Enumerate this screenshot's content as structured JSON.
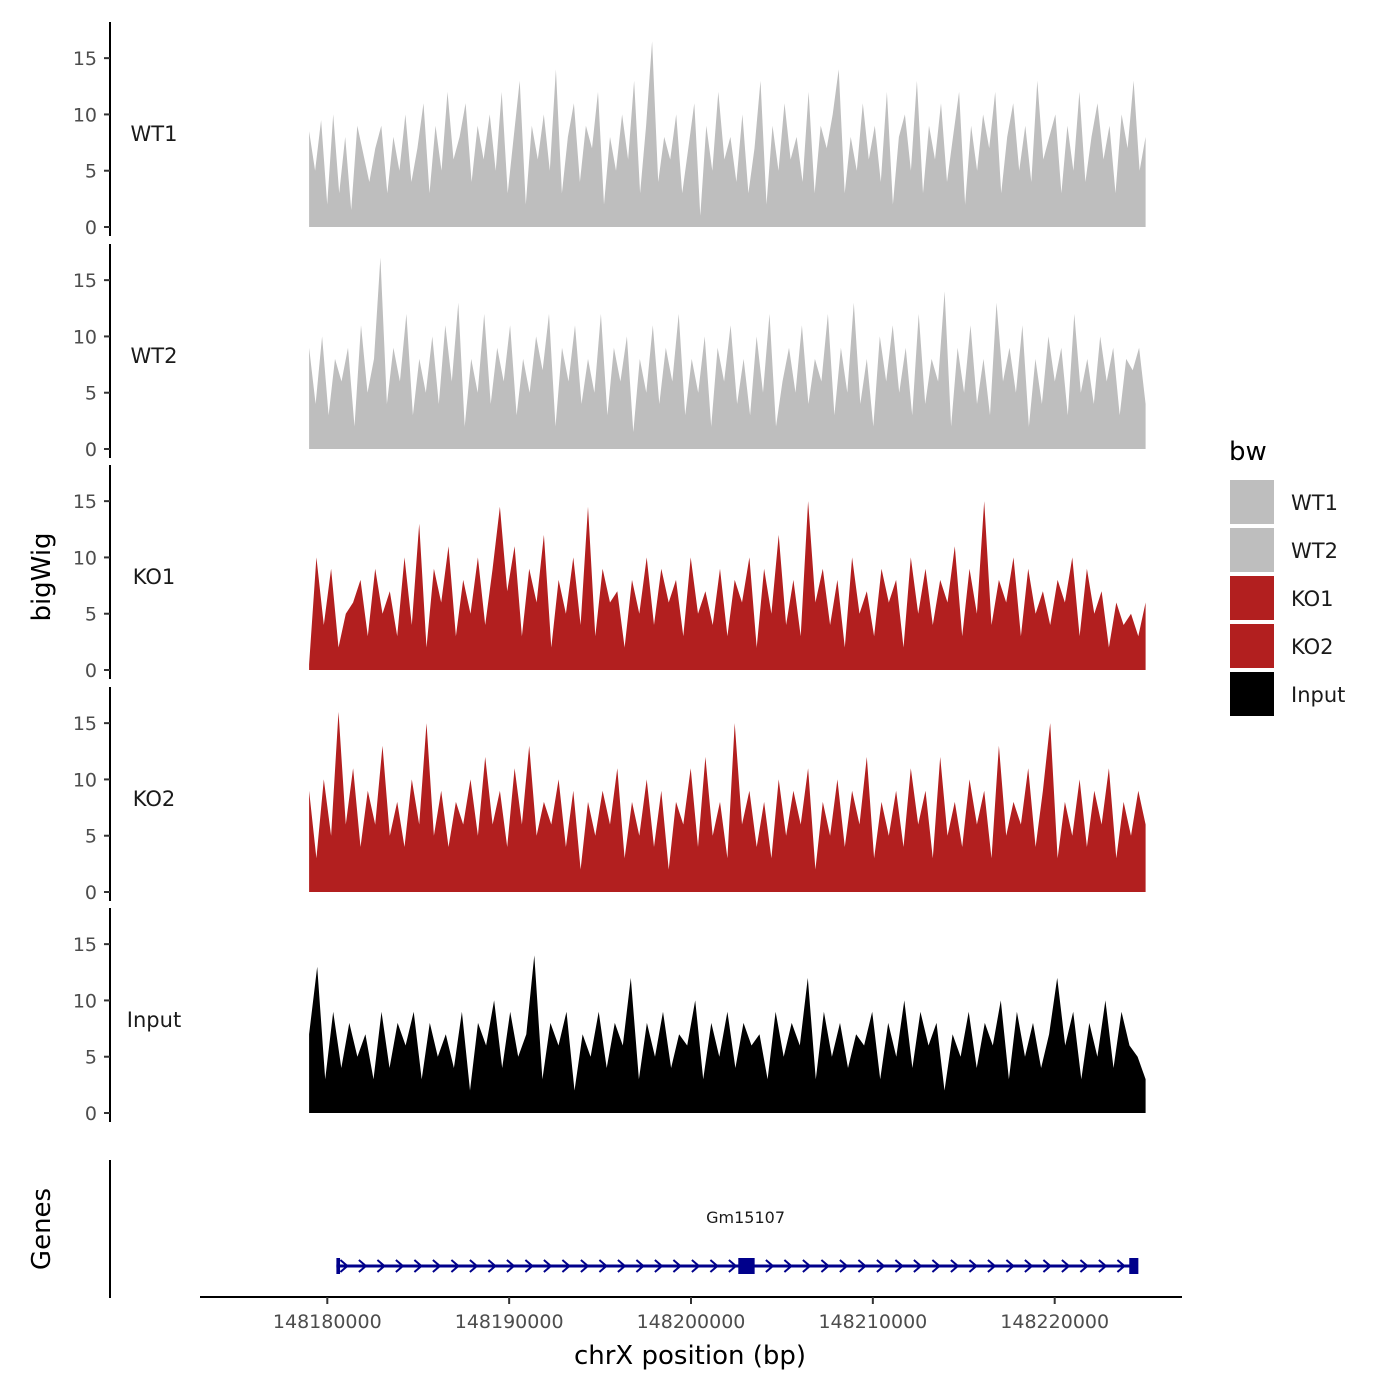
{
  "chart_data": {
    "type": "area",
    "title": "",
    "ylabel": "bigWig",
    "ylabel_genes": "Genes",
    "xlabel": "chrX position (bp)",
    "xlim": [
      148173000,
      148227000
    ],
    "ylim": [
      0,
      17.5
    ],
    "y_ticks": [
      0,
      5,
      10,
      15
    ],
    "y_tick_labels": [
      "0",
      "5",
      "10",
      "15"
    ],
    "x_ticks": [
      148180000,
      148190000,
      148200000,
      148210000,
      148220000
    ],
    "x_tick_labels": [
      "148180000",
      "148190000",
      "148200000",
      "148210000",
      "148220000"
    ],
    "region": [
      148179000,
      148225000
    ],
    "grid": false,
    "legend": {
      "title": "bw",
      "position": "right",
      "entries": [
        {
          "label": "WT1",
          "color": "#bebebe"
        },
        {
          "label": "WT2",
          "color": "#bebebe"
        },
        {
          "label": "KO1",
          "color": "#b21f1f"
        },
        {
          "label": "KO2",
          "color": "#b21f1f"
        },
        {
          "label": "Input",
          "color": "#000000"
        }
      ]
    },
    "series": [
      {
        "name": "WT1",
        "color": "#bebebe",
        "values": [
          8.5,
          5,
          9.5,
          2,
          10,
          3,
          8,
          1.5,
          9,
          6.5,
          4,
          7,
          9,
          3,
          8,
          5,
          10,
          4,
          7,
          11,
          3,
          9,
          5,
          12,
          6,
          8,
          11,
          4,
          9,
          6,
          10,
          5,
          12,
          3,
          8,
          13,
          2,
          9,
          6,
          10,
          5,
          14,
          3,
          8,
          11,
          4,
          9,
          7,
          12,
          2,
          8,
          5,
          10,
          6,
          13,
          3,
          9,
          16.5,
          4,
          8,
          6,
          10,
          3,
          7,
          11,
          1,
          9,
          5,
          12,
          6,
          8,
          4,
          10,
          3,
          7,
          13,
          2,
          9,
          5,
          11,
          6,
          8,
          4,
          12,
          3,
          9,
          7,
          10,
          14,
          3,
          8,
          5,
          11,
          6,
          9,
          4,
          12,
          2,
          8,
          10,
          5,
          13,
          3,
          9,
          6,
          11,
          4,
          8,
          12,
          2,
          9,
          5,
          10,
          7,
          12,
          3,
          8,
          11,
          5,
          9,
          4,
          13,
          6,
          8,
          10,
          3,
          9,
          5,
          12,
          4,
          8,
          11,
          6,
          9,
          3,
          10,
          7,
          13,
          5,
          8
        ]
      },
      {
        "name": "WT2",
        "color": "#bebebe",
        "values": [
          9,
          4,
          10,
          3,
          8,
          6,
          9,
          2,
          11,
          5,
          8,
          17,
          4,
          9,
          6,
          12,
          3,
          8,
          5,
          10,
          4,
          11,
          6,
          13,
          2,
          8,
          5,
          12,
          4,
          9,
          6,
          11,
          3,
          8,
          5,
          10,
          7,
          12,
          2,
          9,
          6,
          11,
          4,
          8,
          5,
          12,
          3,
          9,
          6,
          10,
          1.5,
          8,
          5,
          11,
          4,
          9,
          6,
          12,
          3,
          8,
          5,
          10,
          2,
          9,
          6,
          11,
          4,
          8,
          3,
          10,
          5,
          12,
          2,
          6,
          9,
          5,
          11,
          4,
          8,
          6,
          12,
          3,
          9,
          5,
          13,
          4,
          8,
          2,
          10,
          6,
          11,
          5,
          9,
          3,
          12,
          4,
          8,
          6,
          14,
          2,
          9,
          5,
          11,
          4,
          8,
          3,
          13,
          6,
          9,
          5,
          11,
          2,
          8,
          4,
          10,
          6,
          9,
          3,
          12,
          5,
          8,
          4,
          10,
          6,
          9,
          3,
          8,
          7,
          9,
          4
        ]
      },
      {
        "name": "KO1",
        "color": "#b21f1f",
        "values": [
          0.5,
          10,
          4,
          9,
          2,
          5,
          6,
          8,
          3,
          9,
          5,
          7,
          3,
          10,
          4,
          13,
          2,
          9,
          6,
          11,
          3,
          8,
          5,
          10,
          4,
          9,
          14.5,
          7,
          11,
          3,
          9,
          6,
          12,
          2,
          8,
          5,
          10,
          4,
          14.5,
          3,
          9,
          6,
          7,
          2,
          8,
          5,
          10,
          4,
          9,
          6,
          8,
          3,
          10,
          5,
          7,
          4,
          9,
          3,
          8,
          6,
          10,
          2,
          9,
          5,
          12,
          4,
          8,
          3,
          15,
          6,
          9,
          4,
          8,
          2,
          10,
          5,
          7,
          3,
          9,
          6,
          8,
          2,
          10,
          5,
          9,
          4,
          8,
          6,
          11,
          3,
          9,
          5,
          15,
          4,
          8,
          6,
          10,
          3,
          9,
          5,
          7,
          4,
          8,
          6,
          10,
          3,
          9,
          5,
          7,
          2,
          6,
          4,
          5,
          3,
          6
        ]
      },
      {
        "name": "KO2",
        "color": "#b21f1f",
        "values": [
          9,
          3,
          10,
          5,
          16,
          6,
          11,
          4,
          9,
          6,
          13,
          5,
          8,
          4,
          10,
          6,
          15,
          5,
          9,
          4,
          8,
          6,
          10,
          5,
          12,
          6,
          9,
          4,
          11,
          6,
          13,
          5,
          8,
          6,
          10,
          4,
          9,
          2,
          8,
          5,
          9,
          6,
          11,
          3,
          8,
          5,
          10,
          4,
          9,
          2,
          8,
          6,
          11,
          4,
          12,
          5,
          8,
          3,
          15,
          6,
          9,
          4,
          8,
          3,
          10,
          5,
          9,
          6,
          11,
          2,
          8,
          5,
          10,
          4,
          9,
          6,
          12,
          3,
          8,
          5,
          9,
          4,
          11,
          6,
          9,
          3,
          12,
          5,
          8,
          4,
          10,
          6,
          9,
          3,
          13,
          5,
          8,
          6,
          11,
          4,
          9,
          15,
          3,
          8,
          5,
          10,
          4,
          9,
          6,
          11,
          3,
          8,
          5,
          9,
          6
        ]
      },
      {
        "name": "Input",
        "color": "#000000",
        "values": [
          7,
          13,
          3,
          9,
          4,
          8,
          5,
          7,
          3,
          9,
          4,
          8,
          6,
          9,
          3,
          8,
          5,
          7,
          4,
          9,
          2,
          8,
          6,
          10,
          4,
          9,
          5,
          7,
          14,
          3,
          8,
          6,
          9,
          2,
          7,
          5,
          9,
          4,
          8,
          6,
          12,
          3,
          8,
          5,
          9,
          4,
          7,
          6,
          10,
          3,
          8,
          5,
          9,
          4,
          8,
          6,
          7,
          3,
          9,
          5,
          8,
          6,
          12,
          3,
          9,
          5,
          8,
          4,
          7,
          6,
          9,
          3,
          8,
          5,
          10,
          4,
          9,
          6,
          8,
          2,
          7,
          5,
          9,
          4,
          8,
          6,
          10,
          3,
          9,
          5,
          8,
          4,
          7,
          12,
          6,
          9,
          3,
          8,
          5,
          10,
          4,
          9,
          6,
          5,
          3
        ]
      }
    ],
    "genes": [
      {
        "name": "Gm15107",
        "start": 148180500,
        "end": 148224500,
        "strand": "+",
        "exons": [
          [
            148180500,
            148180700
          ],
          [
            148202600,
            148203500
          ],
          [
            148224100,
            148224600
          ]
        ],
        "color": "#00008b"
      }
    ]
  }
}
